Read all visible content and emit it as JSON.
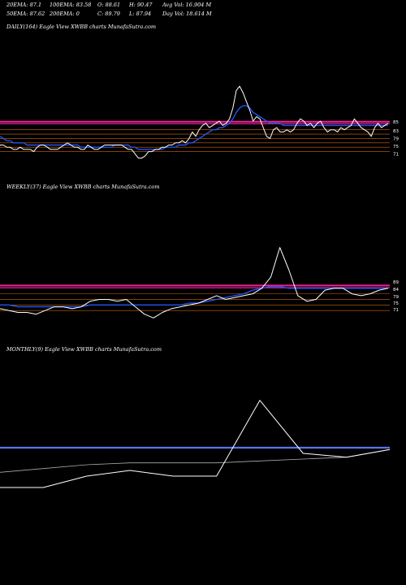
{
  "header": {
    "row1": [
      "20EMA: 87.1",
      "100EMA: 83.58",
      "O: 88.61",
      "H: 90.47",
      "Avg Vol: 16.904  M"
    ],
    "row2": [
      "50EMA: 87.62",
      "200EMA: 0",
      "C: 89.79",
      "L: 87.94",
      "Day Vol: 18.614  M"
    ]
  },
  "colors": {
    "price": "#ffffff",
    "ema_blue": "#2255ee",
    "band_magenta": "#ee2299",
    "band_orange": "#cc6611",
    "thin_lines": "#aaaaaa"
  },
  "chart_data": [
    {
      "type": "line",
      "title": "DAILY(164) Eagle  View  XWBB charts MunafaSutra.com",
      "y_ticks": [
        "85",
        "83",
        "79",
        "75",
        "71"
      ],
      "series": [
        {
          "values": [
            76,
            76,
            75,
            75,
            74,
            74,
            75,
            74,
            74,
            74,
            73,
            75,
            76,
            76,
            75,
            74,
            74,
            74,
            75,
            76,
            77,
            76,
            75,
            75,
            74,
            74,
            76,
            75,
            74,
            74,
            75,
            76,
            76,
            76,
            76,
            76,
            76,
            75,
            74,
            74,
            72,
            70,
            70,
            71,
            73,
            73,
            74,
            74,
            75,
            75,
            76,
            76,
            77,
            77,
            78,
            77,
            79,
            82,
            80,
            83,
            85,
            86,
            84,
            85,
            86,
            87,
            85,
            86,
            88,
            93,
            101,
            103,
            100,
            96,
            92,
            87,
            89,
            88,
            84,
            80,
            79,
            83,
            84,
            82,
            82,
            83,
            82,
            83,
            86,
            88,
            87,
            85,
            86,
            84,
            86,
            87,
            84,
            82,
            83,
            83,
            82,
            84,
            83,
            84,
            85,
            88,
            86,
            84,
            83,
            82,
            80,
            84,
            86,
            84,
            85,
            86
          ]
        },
        {
          "values": [
            80,
            79,
            78,
            78,
            77,
            77,
            77,
            77,
            76,
            76,
            76,
            76,
            76,
            76,
            76,
            76,
            76,
            76,
            76,
            76,
            76,
            76,
            76,
            76,
            75,
            75,
            75,
            75,
            75,
            75,
            75,
            75,
            75,
            75,
            76,
            76,
            76,
            76,
            76,
            75,
            75,
            74,
            74,
            74,
            74,
            74,
            74,
            74,
            74,
            75,
            75,
            75,
            75,
            76,
            76,
            76,
            77,
            77,
            78,
            79,
            80,
            81,
            82,
            83,
            83,
            84,
            84,
            85,
            86,
            88,
            91,
            93,
            94,
            94,
            93,
            91,
            90,
            89,
            88,
            87,
            86,
            86,
            86,
            86,
            85,
            85,
            85,
            85,
            85,
            85,
            85,
            85,
            85,
            85,
            85,
            85,
            85,
            85,
            85,
            85,
            85,
            85,
            85,
            85,
            85,
            85,
            85,
            85,
            85,
            85,
            85,
            85,
            85,
            85,
            85,
            85
          ]
        }
      ]
    },
    {
      "type": "line",
      "title": "WEEKLY(37) Eagle  View  XWBB charts MunafaSutra.com",
      "y_ticks": [
        "89",
        "84",
        "79",
        "75",
        "71"
      ],
      "series": [
        {
          "values": [
            75,
            74,
            73,
            73,
            72,
            74,
            76,
            76,
            75,
            76,
            79,
            80,
            80,
            79,
            80,
            76,
            72,
            70,
            73,
            75,
            76,
            77,
            78,
            80,
            82,
            80,
            81,
            82,
            83,
            86,
            92,
            108,
            96,
            82,
            79,
            80,
            85,
            86,
            86,
            83,
            82,
            83,
            85,
            86
          ]
        },
        {
          "values": [
            77,
            77,
            76,
            76,
            76,
            76,
            76,
            76,
            76,
            76,
            77,
            77,
            77,
            77,
            77,
            77,
            77,
            77,
            77,
            77,
            77,
            78,
            78,
            79,
            80,
            81,
            82,
            83,
            85,
            86,
            87,
            87,
            86,
            86,
            86,
            86,
            86,
            86,
            86,
            86,
            86,
            86,
            86,
            86
          ]
        }
      ]
    },
    {
      "type": "line",
      "title": "MONTHLY(9) Eagle  View  XWBB charts MunafaSutra.com",
      "series": [
        {
          "values": [
            0,
            0,
            6,
            9,
            6,
            6,
            46,
            18,
            16,
            20
          ]
        },
        {
          "values": [
            8,
            10,
            12,
            13,
            13,
            13,
            14,
            15,
            16,
            20
          ]
        }
      ]
    }
  ]
}
